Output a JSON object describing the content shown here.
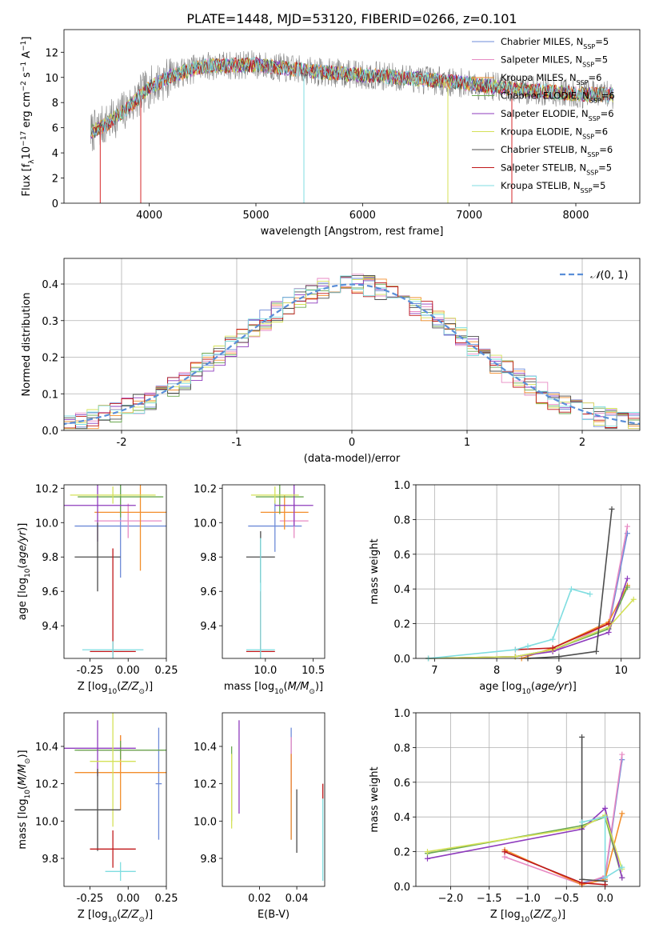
{
  "title": "PLATE=1448, MJD=53120, FIBERID=0266, z=0.101",
  "colors": {
    "Chabrier MILES": "#6e8bd8",
    "Salpeter MILES": "#e78ac3",
    "Kroupa MILES": "#f28e2b",
    "Chabrier ELODIE": "#6aa84f",
    "Salpeter ELODIE": "#8e3bbd",
    "Kroupa ELODIE": "#d4e157",
    "Chabrier STELIB": "#4d4d4d",
    "Salpeter STELIB": "#c0181a",
    "Kroupa STELIB": "#7fdde0",
    "data": "#808080",
    "normal_curve": "#5a8ed8"
  },
  "chart_data": [
    {
      "id": "spectrum",
      "type": "line",
      "xlabel": "wavelength [Angstrom, rest frame]",
      "ylabel": "Flux [f_λ10^-17 erg cm^-2 s^-1 A^-1]",
      "xlim": [
        3200,
        8600
      ],
      "ylim": [
        0,
        13.8
      ],
      "xticks": [
        4000,
        5000,
        6000,
        7000,
        8000
      ],
      "yticks": [
        0,
        2,
        4,
        6,
        8,
        10,
        12
      ],
      "legend_position": "upper-right",
      "legend": [
        {
          "model": "Chabrier MILES",
          "label": "Chabrier MILES, N",
          "sub": "SSP",
          "n": "=5"
        },
        {
          "model": "Salpeter MILES",
          "label": "Salpeter MILES, N",
          "sub": "SSP",
          "n": "=5"
        },
        {
          "model": "Kroupa MILES",
          "label": "Kroupa MILES, N",
          "sub": "SSP",
          "n": "=6"
        },
        {
          "model": "Chabrier ELODIE",
          "label": "Chabrier ELODIE, N",
          "sub": "SSP",
          "n": "=6"
        },
        {
          "model": "Salpeter ELODIE",
          "label": "Salpeter ELODIE, N",
          "sub": "SSP",
          "n": "=6"
        },
        {
          "model": "Kroupa ELODIE",
          "label": "Kroupa ELODIE, N",
          "sub": "SSP",
          "n": "=6"
        },
        {
          "model": "Chabrier STELIB",
          "label": "Chabrier STELIB, N",
          "sub": "SSP",
          "n": "=6"
        },
        {
          "model": "Salpeter STELIB",
          "label": "Salpeter STELIB, N",
          "sub": "SSP",
          "n": "=5"
        },
        {
          "model": "Kroupa STELIB",
          "label": "Kroupa STELIB, N",
          "sub": "SSP",
          "n": "=5"
        }
      ],
      "continuum_model": {
        "x": [
          3450,
          3600,
          3800,
          4000,
          4200,
          4500,
          5000,
          5500,
          6000,
          6500,
          7000,
          7500,
          8000,
          8350
        ],
        "y": [
          5.6,
          6.3,
          7.6,
          9.2,
          10.1,
          10.9,
          11.0,
          10.5,
          10.2,
          9.9,
          9.5,
          9.0,
          8.7,
          8.6
        ]
      },
      "glitches": [
        {
          "x": 3540,
          "y": 0
        },
        {
          "x": 3920,
          "y": 0
        },
        {
          "x": 5450,
          "y": 0
        },
        {
          "x": 6800,
          "y": 0
        },
        {
          "x": 7400,
          "y": 0
        }
      ]
    },
    {
      "id": "residual_histogram",
      "type": "histogram",
      "xlabel": "(data-model)/error",
      "ylabel": "Normed distribution",
      "xlim": [
        -2.5,
        2.5
      ],
      "ylim": [
        0,
        0.47
      ],
      "xticks": [
        -2,
        -1,
        0,
        1,
        2
      ],
      "yticks": [
        0.0,
        0.1,
        0.2,
        0.3,
        0.4
      ],
      "grid": true,
      "legend_position": "upper-right",
      "legend": [
        {
          "label": "N(0,1)",
          "style": "dashed"
        }
      ],
      "bin_width": 0.1
    },
    {
      "id": "age_vs_Z",
      "type": "errorbar",
      "xlabel": "Z [log10(Z/Z⊙)]",
      "ylabel": "age [log10(age/yr)]",
      "xlim": [
        -0.42,
        0.25
      ],
      "ylim": [
        9.21,
        10.22
      ],
      "xticks": [
        -0.25,
        0.0,
        0.25
      ],
      "yticks": [
        9.4,
        9.6,
        9.8,
        10.0,
        10.2
      ],
      "points": [
        {
          "model": "Chabrier MILES",
          "x": -0.05,
          "xerr": 0.3,
          "y": 9.98,
          "yerr": 0.3
        },
        {
          "model": "Salpeter MILES",
          "x": 0.0,
          "xerr": 0.22,
          "y": 10.01,
          "yerr": 0.1
        },
        {
          "model": "Kroupa MILES",
          "x": 0.08,
          "xerr": 0.3,
          "y": 10.06,
          "yerr": 0.34
        },
        {
          "model": "Chabrier ELODIE",
          "x": -0.05,
          "xerr": 0.28,
          "y": 10.15,
          "yerr": 0.12
        },
        {
          "model": "Salpeter ELODIE",
          "x": -0.2,
          "xerr": 0.25,
          "y": 10.1,
          "yerr": 0.21
        },
        {
          "model": "Kroupa ELODIE",
          "x": -0.1,
          "xerr": 0.28,
          "y": 10.16,
          "yerr": 0.05
        },
        {
          "model": "Chabrier STELIB",
          "x": -0.2,
          "xerr": 0.15,
          "y": 9.8,
          "yerr": 0.2
        },
        {
          "model": "Salpeter STELIB",
          "x": -0.1,
          "xerr": 0.15,
          "y": 9.25,
          "yerr": 0.6
        },
        {
          "model": "Kroupa STELIB",
          "x": -0.1,
          "xerr": 0.2,
          "y": 9.26,
          "yerr": 0.05
        }
      ]
    },
    {
      "id": "age_vs_mass",
      "type": "errorbar",
      "xlabel": "mass [log10(M/M⊙)]",
      "ylabel": "",
      "xlim": [
        9.55,
        10.62
      ],
      "ylim": [
        9.21,
        10.22
      ],
      "xticks": [
        10.0,
        10.5
      ],
      "yticks": [
        9.4,
        9.6,
        9.8,
        10.0,
        10.2
      ],
      "points": [
        {
          "model": "Chabrier MILES",
          "x": 10.1,
          "xerr": 0.28,
          "y": 9.98,
          "yerr": 0.15
        },
        {
          "model": "Salpeter MILES",
          "x": 10.3,
          "xerr": 0.15,
          "y": 10.01,
          "yerr": 0.1
        },
        {
          "model": "Kroupa MILES",
          "x": 10.2,
          "xerr": 0.25,
          "y": 10.06,
          "yerr": 0.1
        },
        {
          "model": "Chabrier ELODIE",
          "x": 10.15,
          "xerr": 0.25,
          "y": 10.15,
          "yerr": 0.1
        },
        {
          "model": "Salpeter ELODIE",
          "x": 10.3,
          "xerr": 0.2,
          "y": 10.1,
          "yerr": 0.12
        },
        {
          "model": "Kroupa ELODIE",
          "x": 10.1,
          "xerr": 0.25,
          "y": 10.16,
          "yerr": 0.05
        },
        {
          "model": "Chabrier STELIB",
          "x": 9.95,
          "xerr": 0.15,
          "y": 9.8,
          "yerr": 0.15
        },
        {
          "model": "Salpeter STELIB",
          "x": 9.95,
          "xerr": 0.15,
          "y": 9.25,
          "yerr": 0.35
        },
        {
          "model": "Kroupa STELIB",
          "x": 9.95,
          "xerr": 0.15,
          "y": 9.26,
          "yerr": 0.65
        }
      ]
    },
    {
      "id": "mass_weight_vs_age",
      "type": "line",
      "xlabel": "age [log10(age/yr)]",
      "ylabel": "mass weight",
      "xlim": [
        6.7,
        10.3
      ],
      "ylim": [
        0.0,
        1.0
      ],
      "xticks": [
        7,
        8,
        9,
        10
      ],
      "yticks": [
        0.0,
        0.2,
        0.4,
        0.6,
        0.8,
        1.0
      ],
      "grid": true,
      "series": [
        {
          "model": "Chabrier MILES",
          "x": [
            8.3,
            8.9,
            9.8,
            10.1
          ],
          "y": [
            0.01,
            0.05,
            0.18,
            0.72
          ]
        },
        {
          "model": "Salpeter MILES",
          "x": [
            8.3,
            8.9,
            9.8,
            10.1
          ],
          "y": [
            0.01,
            0.04,
            0.2,
            0.76
          ]
        },
        {
          "model": "Kroupa MILES",
          "x": [
            8.4,
            8.9,
            9.8,
            10.1
          ],
          "y": [
            0.0,
            0.06,
            0.21,
            0.42
          ]
        },
        {
          "model": "Chabrier ELODIE",
          "x": [
            6.9,
            8.3,
            8.9,
            9.8,
            10.1
          ],
          "y": [
            0.0,
            0.01,
            0.05,
            0.17,
            0.41
          ]
        },
        {
          "model": "Salpeter ELODIE",
          "x": [
            6.9,
            8.3,
            8.9,
            9.8,
            10.1
          ],
          "y": [
            0.0,
            0.01,
            0.04,
            0.15,
            0.46
          ]
        },
        {
          "model": "Kroupa ELODIE",
          "x": [
            6.9,
            8.3,
            8.9,
            9.8,
            10.2
          ],
          "y": [
            0.0,
            0.01,
            0.05,
            0.18,
            0.34
          ]
        },
        {
          "model": "Chabrier STELIB",
          "x": [
            8.5,
            9.0,
            9.6,
            9.85
          ],
          "y": [
            0.0,
            0.01,
            0.04,
            0.86
          ]
        },
        {
          "model": "Salpeter STELIB",
          "x": [
            8.3,
            8.9,
            9.8
          ],
          "y": [
            0.05,
            0.06,
            0.2
          ]
        },
        {
          "model": "Kroupa STELIB",
          "x": [
            6.9,
            8.3,
            8.5,
            8.9,
            9.2,
            9.5
          ],
          "y": [
            0.0,
            0.05,
            0.07,
            0.11,
            0.4,
            0.37
          ]
        }
      ]
    },
    {
      "id": "mass_vs_Z",
      "type": "errorbar",
      "xlabel": "Z [log10(Z/Z⊙)]",
      "ylabel": "mass [log10(M/M⊙)]",
      "xlim": [
        -0.42,
        0.25
      ],
      "ylim": [
        9.65,
        10.58
      ],
      "xticks": [
        -0.25,
        0.0,
        0.25
      ],
      "yticks": [
        9.8,
        10.0,
        10.2,
        10.4
      ],
      "points": [
        {
          "model": "Chabrier MILES",
          "x": 0.2,
          "xerr": 0.02,
          "y": 10.2,
          "yerr": 0.3
        },
        {
          "model": "Salpeter MILES",
          "x": -0.05,
          "xerr": 0.28,
          "y": 10.38,
          "yerr": 0.08
        },
        {
          "model": "Kroupa MILES",
          "x": -0.05,
          "xerr": 0.3,
          "y": 10.26,
          "yerr": 0.2
        },
        {
          "model": "Chabrier ELODIE",
          "x": -0.05,
          "xerr": 0.3,
          "y": 10.38,
          "yerr": 0.05
        },
        {
          "model": "Salpeter ELODIE",
          "x": -0.2,
          "xerr": 0.25,
          "y": 10.39,
          "yerr": 0.15
        },
        {
          "model": "Kroupa ELODIE",
          "x": -0.1,
          "xerr": 0.15,
          "y": 10.32,
          "yerr": 0.35
        },
        {
          "model": "Chabrier STELIB",
          "x": -0.2,
          "xerr": 0.15,
          "y": 10.06,
          "yerr": 0.22
        },
        {
          "model": "Salpeter STELIB",
          "x": -0.1,
          "xerr": 0.15,
          "y": 9.85,
          "yerr": 0.1
        },
        {
          "model": "Kroupa STELIB",
          "x": -0.05,
          "xerr": 0.1,
          "y": 9.73,
          "yerr": 0.05
        }
      ]
    },
    {
      "id": "mass_vs_EBV",
      "type": "errorbar",
      "xlabel": "E(B-V)",
      "ylabel": "",
      "xlim": [
        0.0,
        0.055
      ],
      "ylim": [
        9.65,
        10.58
      ],
      "xticks": [
        0.02,
        0.04
      ],
      "yticks": [
        9.8,
        10.0,
        10.2,
        10.4
      ],
      "points": [
        {
          "model": "Chabrier MILES",
          "x": 0.037,
          "xerr": 0,
          "y": 10.2,
          "yerr": 0.3
        },
        {
          "model": "Salpeter MILES",
          "x": 0.037,
          "xerr": 0,
          "y": 10.3,
          "yerr": 0.15
        },
        {
          "model": "Kroupa MILES",
          "x": 0.037,
          "xerr": 0,
          "y": 10.13,
          "yerr": 0.23
        },
        {
          "model": "Chabrier ELODIE",
          "x": 0.005,
          "xerr": 0,
          "y": 10.2,
          "yerr": 0.2
        },
        {
          "model": "Salpeter ELODIE",
          "x": 0.009,
          "xerr": 0,
          "y": 10.29,
          "yerr": 0.25
        },
        {
          "model": "Kroupa ELODIE",
          "x": 0.005,
          "xerr": 0,
          "y": 10.16,
          "yerr": 0.2
        },
        {
          "model": "Chabrier STELIB",
          "x": 0.04,
          "xerr": 0,
          "y": 10.0,
          "yerr": 0.17
        },
        {
          "model": "Salpeter STELIB",
          "x": 0.054,
          "xerr": 0,
          "y": 10.16,
          "yerr": 0.04
        },
        {
          "model": "Kroupa STELIB",
          "x": 0.054,
          "xerr": 0,
          "y": 9.9,
          "yerr": 0.22
        }
      ]
    },
    {
      "id": "mass_weight_vs_Z",
      "type": "line",
      "xlabel": "Z [log10(Z/Z⊙)]",
      "ylabel": "mass weight",
      "xlim": [
        -2.45,
        0.45
      ],
      "ylim": [
        0.0,
        1.0
      ],
      "xticks": [
        -2.0,
        -1.5,
        -1.0,
        -0.5,
        0.0
      ],
      "yticks": [
        0.0,
        0.2,
        0.4,
        0.6,
        0.8,
        1.0
      ],
      "grid": true,
      "series": [
        {
          "model": "Chabrier MILES",
          "x": [
            -1.3,
            -0.3,
            0.0,
            0.22
          ],
          "y": [
            0.2,
            0.02,
            0.05,
            0.73
          ]
        },
        {
          "model": "Salpeter MILES",
          "x": [
            -1.3,
            -0.3,
            0.0,
            0.22
          ],
          "y": [
            0.17,
            0.01,
            0.06,
            0.76
          ]
        },
        {
          "model": "Kroupa MILES",
          "x": [
            -1.3,
            -0.3,
            0.0,
            0.22
          ],
          "y": [
            0.21,
            0.01,
            0.04,
            0.42
          ]
        },
        {
          "model": "Chabrier ELODIE",
          "x": [
            -2.3,
            -0.3,
            0.0,
            0.22
          ],
          "y": [
            0.19,
            0.35,
            0.4,
            0.05
          ]
        },
        {
          "model": "Salpeter ELODIE",
          "x": [
            -2.3,
            -0.3,
            0.0,
            0.22
          ],
          "y": [
            0.16,
            0.33,
            0.45,
            0.05
          ]
        },
        {
          "model": "Kroupa ELODIE",
          "x": [
            -2.3,
            -0.3,
            0.0,
            0.22
          ],
          "y": [
            0.2,
            0.34,
            0.41,
            0.1
          ]
        },
        {
          "model": "Chabrier STELIB",
          "x": [
            -0.3,
            -0.3,
            0.0,
            0.0
          ],
          "y": [
            0.86,
            0.04,
            0.03,
            0.01
          ]
        },
        {
          "model": "Salpeter STELIB",
          "x": [
            -1.3,
            -0.3,
            0.0
          ],
          "y": [
            0.2,
            0.02,
            0.01
          ]
        },
        {
          "model": "Kroupa STELIB",
          "x": [
            -0.3,
            0.0,
            0.0,
            0.22
          ],
          "y": [
            0.37,
            0.4,
            0.05,
            0.11
          ]
        }
      ]
    }
  ]
}
